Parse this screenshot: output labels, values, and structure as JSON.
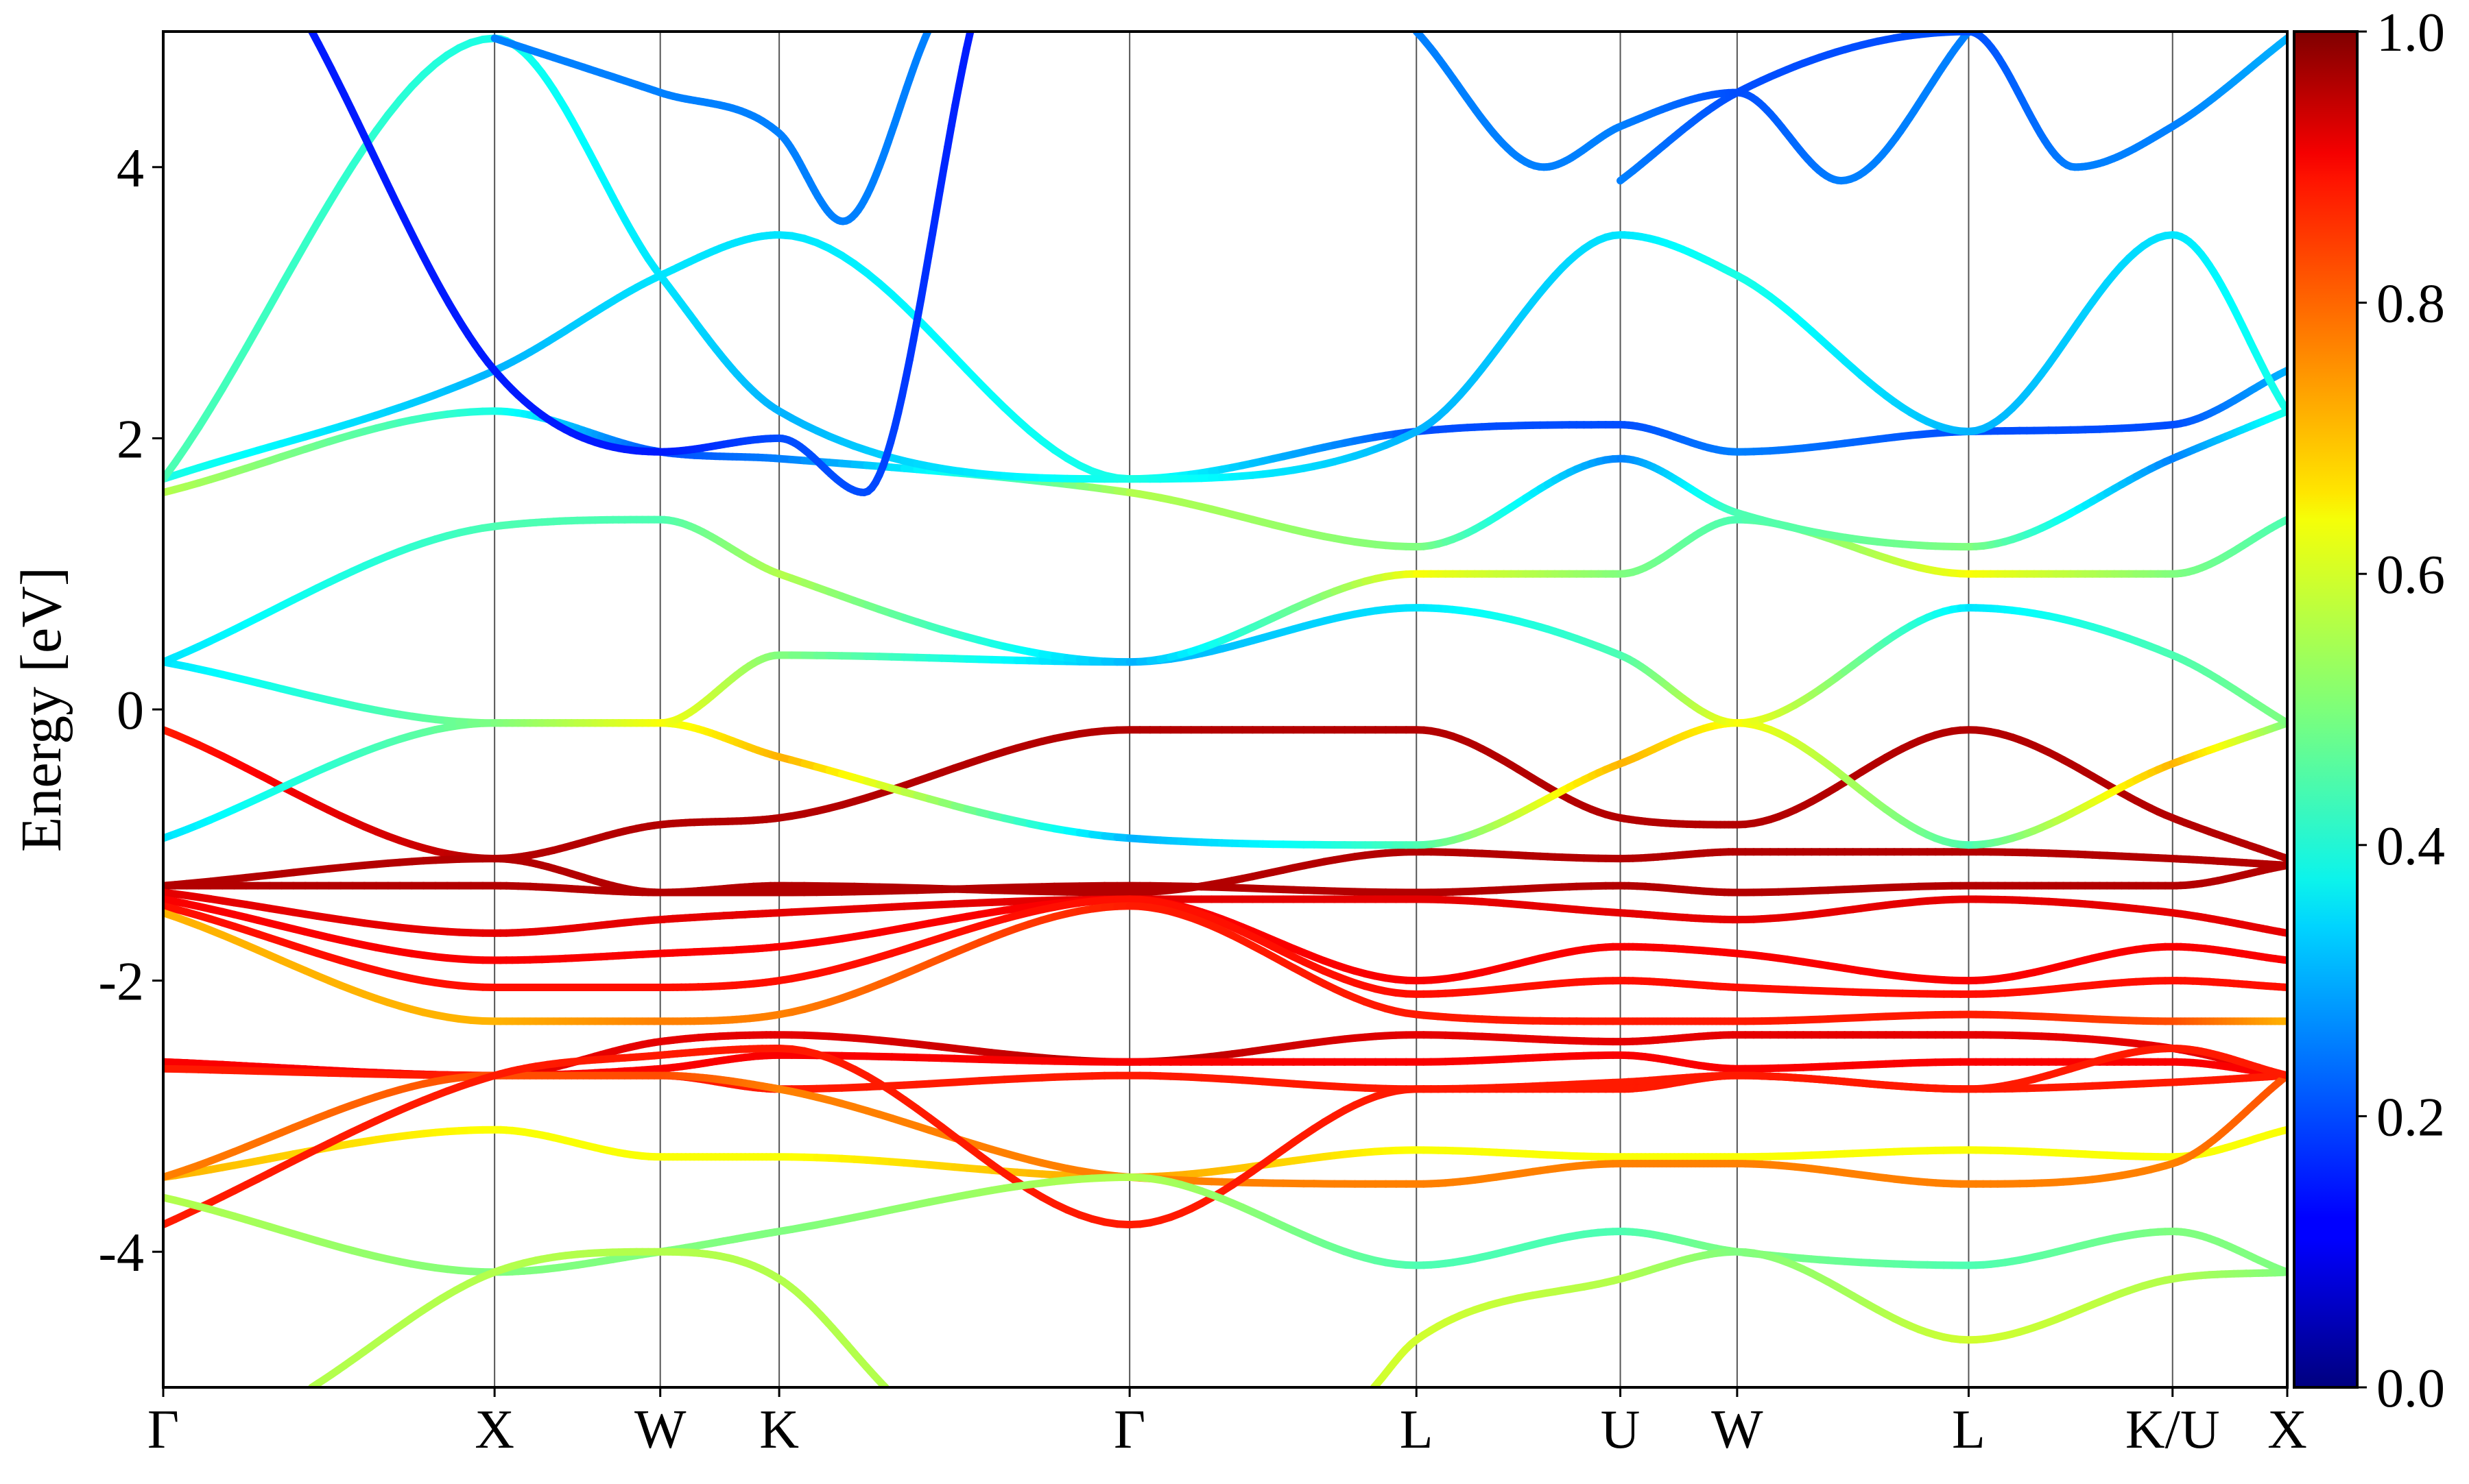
{
  "chart_data": {
    "type": "line",
    "title": "",
    "xlabel": "",
    "ylabel": "Energy [eV]",
    "ylim": [
      -5,
      5
    ],
    "y_ticks": [
      4,
      2,
      0,
      -2,
      -4
    ],
    "y_tick_labels": [
      "4",
      "2",
      "0",
      "-2",
      "-4"
    ],
    "x_range": [
      0,
      1
    ],
    "high_symmetry_points": [
      {
        "label": "Γ",
        "x": 0.0
      },
      {
        "label": "X",
        "x": 0.156
      },
      {
        "label": "W",
        "x": 0.234
      },
      {
        "label": "K",
        "x": 0.29
      },
      {
        "label": "Γ",
        "x": 0.455
      },
      {
        "label": "L",
        "x": 0.59
      },
      {
        "label": "U",
        "x": 0.686
      },
      {
        "label": "W",
        "x": 0.741
      },
      {
        "label": "L",
        "x": 0.85
      },
      {
        "label": "K/U",
        "x": 0.946
      },
      {
        "label": "X",
        "x": 1.0
      }
    ],
    "grid": false,
    "colorbar": {
      "colormap": "jet",
      "range": [
        0,
        1
      ],
      "ticks": [
        1.0,
        0.8,
        0.6,
        0.4,
        0.2,
        0.0
      ],
      "tick_labels": [
        "1.0",
        "0.8",
        "0.6",
        "0.4",
        "0.2",
        "0.0"
      ]
    },
    "series": [
      {
        "x": [
          0,
          0.156,
          0.234,
          0.29,
          0.455,
          0.59,
          0.686,
          0.741,
          0.85,
          0.946,
          1.0
        ],
        "y": [
          -0.15,
          -1.1,
          -0.85,
          -0.8,
          -0.15,
          -0.15,
          -0.8,
          -0.85,
          -0.15,
          -0.8,
          -1.1
        ],
        "w": [
          0.85,
          0.95,
          0.95,
          0.95,
          0.95,
          0.95,
          0.95,
          0.95,
          0.95,
          0.95,
          0.95
        ]
      },
      {
        "x": [
          0,
          0.156,
          0.234,
          0.29,
          0.455,
          0.59,
          0.686,
          0.741,
          0.85,
          0.946,
          1.0
        ],
        "y": [
          -1.3,
          -1.1,
          -1.35,
          -1.3,
          -1.35,
          -1.05,
          -1.1,
          -1.05,
          -1.05,
          -1.1,
          -1.15
        ],
        "w": [
          0.95,
          0.95,
          0.95,
          0.95,
          0.95,
          0.95,
          0.95,
          0.95,
          0.95,
          0.95,
          0.95
        ]
      },
      {
        "x": [
          0,
          0.156,
          0.234,
          0.29,
          0.455,
          0.59,
          0.686,
          0.741,
          0.85,
          0.946,
          1.0
        ],
        "y": [
          -1.3,
          -1.3,
          -1.35,
          -1.35,
          -1.3,
          -1.35,
          -1.3,
          -1.35,
          -1.3,
          -1.3,
          -1.15
        ],
        "w": [
          0.95,
          0.95,
          0.95,
          0.95,
          0.95,
          0.95,
          0.95,
          0.95,
          0.95,
          0.95,
          0.95
        ]
      },
      {
        "x": [
          0,
          0.156,
          0.234,
          0.29,
          0.455,
          0.59,
          0.686,
          0.741,
          0.85,
          0.946,
          1.0
        ],
        "y": [
          -1.35,
          -1.65,
          -1.55,
          -1.5,
          -1.4,
          -1.4,
          -1.5,
          -1.55,
          -1.4,
          -1.5,
          -1.65
        ],
        "w": [
          0.9,
          0.9,
          0.9,
          0.9,
          0.9,
          0.9,
          0.9,
          0.9,
          0.9,
          0.9,
          0.9
        ]
      },
      {
        "x": [
          0,
          0.156,
          0.234,
          0.29,
          0.455,
          0.59,
          0.686,
          0.741,
          0.85,
          0.946,
          1.0
        ],
        "y": [
          -1.4,
          -1.85,
          -1.8,
          -1.75,
          -1.4,
          -2.0,
          -1.75,
          -1.8,
          -2.0,
          -1.75,
          -1.85
        ],
        "w": [
          0.88,
          0.88,
          0.88,
          0.88,
          0.88,
          0.88,
          0.88,
          0.88,
          0.88,
          0.88,
          0.88
        ]
      },
      {
        "x": [
          0,
          0.156,
          0.234,
          0.29,
          0.455,
          0.59,
          0.686,
          0.741,
          0.85,
          0.946,
          1.0
        ],
        "y": [
          -1.45,
          -2.05,
          -2.05,
          -2.0,
          -1.4,
          -2.1,
          -2.0,
          -2.05,
          -2.1,
          -2.0,
          -2.05
        ],
        "w": [
          0.86,
          0.86,
          0.86,
          0.86,
          0.86,
          0.86,
          0.86,
          0.86,
          0.86,
          0.86,
          0.86
        ]
      },
      {
        "x": [
          0,
          0.156,
          0.234,
          0.29,
          0.455,
          0.59,
          0.686,
          0.741,
          0.85,
          0.946,
          1.0
        ],
        "y": [
          -1.5,
          -2.3,
          -2.3,
          -2.25,
          -1.45,
          -2.25,
          -2.3,
          -2.3,
          -2.25,
          -2.3,
          -2.3
        ],
        "w": [
          0.7,
          0.7,
          0.75,
          0.75,
          0.85,
          0.85,
          0.85,
          0.85,
          0.85,
          0.8,
          0.7
        ]
      },
      {
        "x": [
          0,
          0.156,
          0.234,
          0.29,
          0.455,
          0.59,
          0.686,
          0.741,
          0.85,
          0.946,
          1.0
        ],
        "y": [
          -2.6,
          -2.7,
          -2.45,
          -2.4,
          -2.6,
          -2.4,
          -2.45,
          -2.4,
          -2.4,
          -2.5,
          -2.7
        ],
        "w": [
          0.9,
          0.9,
          0.9,
          0.9,
          0.95,
          0.9,
          0.9,
          0.9,
          0.9,
          0.9,
          0.9
        ]
      },
      {
        "x": [
          0,
          0.156,
          0.234,
          0.29,
          0.455,
          0.59,
          0.686,
          0.741,
          0.85,
          0.946,
          1.0
        ],
        "y": [
          -2.6,
          -2.7,
          -2.65,
          -2.55,
          -2.6,
          -2.6,
          -2.55,
          -2.65,
          -2.6,
          -2.6,
          -2.7
        ],
        "w": [
          0.88,
          0.88,
          0.88,
          0.88,
          0.88,
          0.88,
          0.88,
          0.88,
          0.88,
          0.88,
          0.88
        ]
      },
      {
        "x": [
          0,
          0.156,
          0.234,
          0.29,
          0.455,
          0.59,
          0.686,
          0.741,
          0.85,
          0.946,
          1.0
        ],
        "y": [
          -2.65,
          -2.7,
          -2.7,
          -2.8,
          -2.7,
          -2.8,
          -2.75,
          -2.7,
          -2.8,
          -2.75,
          -2.7
        ],
        "w": [
          0.85,
          0.85,
          0.85,
          0.85,
          0.85,
          0.85,
          0.85,
          0.85,
          0.85,
          0.85,
          0.85
        ]
      },
      {
        "x": [
          0,
          0.156,
          0.234,
          0.29,
          0.455,
          0.59,
          0.686,
          0.741,
          0.85,
          0.946,
          1.0
        ],
        "y": [
          -3.45,
          -3.1,
          -3.3,
          -3.3,
          -3.45,
          -3.25,
          -3.3,
          -3.3,
          -3.25,
          -3.3,
          -3.1
        ],
        "w": [
          0.7,
          0.62,
          0.62,
          0.62,
          0.72,
          0.62,
          0.62,
          0.62,
          0.62,
          0.62,
          0.62
        ]
      },
      {
        "x": [
          0,
          0.156,
          0.234,
          0.29,
          0.455,
          0.59,
          0.686,
          0.741,
          0.85,
          0.946,
          1.0
        ],
        "y": [
          -3.45,
          -2.7,
          -2.7,
          -2.8,
          -3.45,
          -3.5,
          -3.35,
          -3.35,
          -3.5,
          -3.35,
          -2.7
        ],
        "w": [
          0.75,
          0.8,
          0.8,
          0.75,
          0.75,
          0.75,
          0.75,
          0.75,
          0.75,
          0.75,
          0.8
        ]
      },
      {
        "x": [
          0,
          0.156,
          0.234,
          0.29,
          0.455,
          0.59,
          0.686,
          0.741,
          0.85,
          0.946,
          1.0
        ],
        "y": [
          -3.8,
          -2.7,
          -2.55,
          -2.5,
          -3.8,
          -2.8,
          -2.8,
          -2.7,
          -2.8,
          -2.5,
          -2.7
        ],
        "w": [
          0.85,
          0.85,
          0.85,
          0.85,
          0.85,
          0.85,
          0.85,
          0.85,
          0.85,
          0.85,
          0.85
        ]
      },
      {
        "x": [
          0,
          0.156,
          0.234,
          0.29,
          0.455,
          0.59,
          0.686,
          0.741,
          0.85,
          0.946,
          1.0
        ],
        "y": [
          -3.6,
          -4.15,
          -4.0,
          -3.85,
          -3.45,
          -4.1,
          -3.85,
          -4.0,
          -4.1,
          -3.85,
          -4.15
        ],
        "w": [
          0.55,
          0.5,
          0.5,
          0.5,
          0.55,
          0.45,
          0.45,
          0.5,
          0.45,
          0.5,
          0.5
        ]
      },
      {
        "x": [
          0.07,
          0.156,
          0.234,
          0.29,
          0.34
        ],
        "y": [
          -5,
          -4.15,
          -4.0,
          -4.2,
          -5
        ],
        "w": [
          0.55,
          0.55,
          0.55,
          0.55,
          0.55
        ]
      },
      {
        "x": [
          0.57,
          0.59,
          0.686,
          0.741,
          0.85,
          0.946,
          1.0
        ],
        "y": [
          -5,
          -4.65,
          -4.2,
          -4.0,
          -4.65,
          -4.2,
          -4.15
        ],
        "w": [
          0.58,
          0.58,
          0.55,
          0.5,
          0.58,
          0.55,
          0.5
        ]
      },
      {
        "x": [
          0,
          0.156,
          0.234,
          0.29,
          0.455,
          0.59,
          0.686,
          0.741,
          0.85,
          0.946,
          1.0
        ],
        "y": [
          -0.95,
          -0.1,
          -0.1,
          -0.35,
          -0.95,
          -1.0,
          -0.4,
          -0.1,
          -1.0,
          -0.4,
          -0.1
        ],
        "w": [
          0.35,
          0.5,
          0.6,
          0.7,
          0.3,
          0.45,
          0.7,
          0.62,
          0.45,
          0.7,
          0.5
        ]
      },
      {
        "x": [
          0,
          0.156,
          0.234,
          0.29,
          0.455,
          0.59,
          0.686,
          0.741,
          0.85,
          0.946,
          1.0
        ],
        "y": [
          0.35,
          -0.1,
          -0.1,
          0.4,
          0.35,
          0.75,
          0.4,
          -0.1,
          0.75,
          0.4,
          -0.1
        ],
        "w": [
          0.35,
          0.5,
          0.62,
          0.5,
          0.3,
          0.35,
          0.45,
          0.62,
          0.35,
          0.45,
          0.5
        ]
      },
      {
        "x": [
          0,
          0.156,
          0.234,
          0.29,
          0.455,
          0.59,
          0.686,
          0.741,
          0.85,
          0.946,
          1.0
        ],
        "y": [
          0.35,
          1.35,
          1.4,
          1.0,
          0.35,
          1.0,
          1.0,
          1.4,
          1.0,
          1.0,
          1.4
        ],
        "w": [
          0.35,
          0.45,
          0.45,
          0.55,
          0.3,
          0.62,
          0.5,
          0.45,
          0.62,
          0.5,
          0.45
        ]
      },
      {
        "x": [
          0,
          0.156,
          0.234,
          0.29,
          0.455,
          0.59,
          0.686,
          0.741,
          0.85,
          0.946,
          1.0
        ],
        "y": [
          1.6,
          2.2,
          1.9,
          1.85,
          1.6,
          1.2,
          1.85,
          1.45,
          1.2,
          1.85,
          2.2
        ],
        "w": [
          0.55,
          0.4,
          0.2,
          0.25,
          0.55,
          0.5,
          0.25,
          0.45,
          0.5,
          0.25,
          0.4
        ]
      },
      {
        "x": [
          0,
          0.156,
          0.234,
          0.29,
          0.455,
          0.59,
          0.686,
          0.741,
          0.85,
          0.946,
          1.0
        ],
        "y": [
          1.7,
          2.5,
          3.2,
          3.5,
          1.7,
          2.05,
          2.1,
          1.9,
          2.05,
          2.1,
          2.5
        ],
        "w": [
          0.4,
          0.3,
          0.35,
          0.35,
          0.4,
          0.2,
          0.2,
          0.25,
          0.2,
          0.2,
          0.3
        ]
      },
      {
        "x": [
          0,
          0.156,
          0.234,
          0.29,
          0.455,
          0.59,
          0.686,
          0.741,
          0.85,
          0.946,
          1.0
        ],
        "y": [
          1.7,
          4.95,
          3.2,
          2.2,
          1.7,
          2.05,
          3.5,
          3.2,
          2.05,
          3.5,
          2.2
        ],
        "w": [
          0.45,
          0.4,
          0.35,
          0.3,
          0.4,
          0.3,
          0.35,
          0.4,
          0.3,
          0.35,
          0.4
        ]
      },
      {
        "x": [
          0.07,
          0.156,
          0.234,
          0.29,
          0.33,
          0.38
        ],
        "y": [
          5,
          2.5,
          1.9,
          2.0,
          1.6,
          5
        ],
        "w": [
          0.15,
          0.15,
          0.15,
          0.2,
          0.2,
          0.15
        ]
      },
      {
        "x": [
          0.156,
          0.234,
          0.29,
          0.32,
          0.36
        ],
        "y": [
          4.95,
          4.55,
          4.25,
          3.6,
          5
        ],
        "w": [
          0.25,
          0.25,
          0.25,
          0.25,
          0.25
        ]
      },
      {
        "x": [
          0.59,
          0.65,
          0.686,
          0.741,
          0.79,
          0.85
        ],
        "y": [
          5,
          4.0,
          4.3,
          4.55,
          3.9,
          5
        ],
        "w": [
          0.25,
          0.25,
          0.25,
          0.2,
          0.25,
          0.25
        ]
      },
      {
        "x": [
          0.686,
          0.741,
          0.85,
          0.9,
          0.946,
          1.0
        ],
        "y": [
          3.9,
          4.55,
          5,
          4.0,
          4.3,
          4.95
        ],
        "w": [
          0.25,
          0.2,
          0.2,
          0.25,
          0.25,
          0.3
        ]
      }
    ]
  }
}
